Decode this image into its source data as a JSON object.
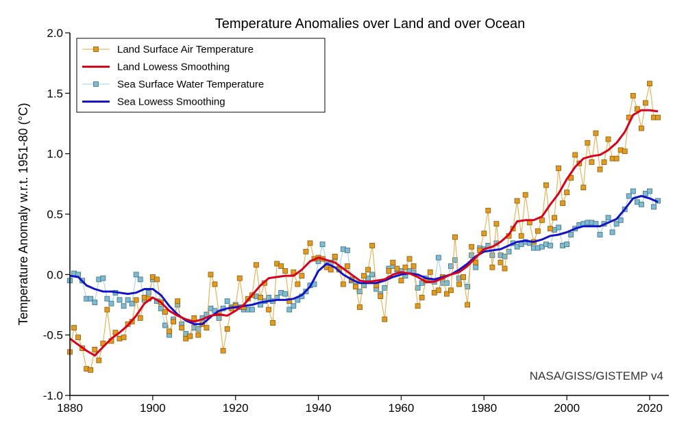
{
  "chart_data": {
    "type": "line",
    "title": "Temperature Anomalies over Land and over Ocean",
    "xlabel": "",
    "ylabel": "Temperature Anomaly w.r.t. 1951-80 (°C)",
    "xlim": [
      1880,
      2025
    ],
    "ylim": [
      -1.0,
      2.0
    ],
    "xticks": [
      1880,
      1900,
      1920,
      1940,
      1960,
      1980,
      2000,
      2020
    ],
    "xtick_labels": [
      "1880",
      "1900",
      "1920",
      "1940",
      "1960",
      "1980",
      "2000",
      "2020"
    ],
    "yticks": [
      -1.0,
      -0.5,
      0.0,
      0.5,
      1.0,
      1.5,
      2.0
    ],
    "ytick_labels": [
      "-1.0",
      "-0.5",
      "0.0",
      "0.5",
      "1.0",
      "1.5",
      "2.0"
    ],
    "annotation": "NASA/GISS/GISTEMP v4",
    "legend_position": "top-left",
    "colors": {
      "land_marker_fill": "#e39b1e",
      "land_marker_stroke": "#8a5a0c",
      "land_line": "#e8a53c",
      "land_smooth": "#d9001b",
      "sea_marker_fill": "#7fbcd2",
      "sea_marker_stroke": "#3b6d80",
      "sea_line": "#9ccfe0",
      "sea_smooth": "#1313c8"
    },
    "series": [
      {
        "name": "Land Surface Air Temperature",
        "style": "markers",
        "x": [
          1880,
          1881,
          1882,
          1883,
          1884,
          1885,
          1886,
          1887,
          1888,
          1889,
          1890,
          1891,
          1892,
          1893,
          1894,
          1895,
          1896,
          1897,
          1898,
          1899,
          1900,
          1901,
          1902,
          1903,
          1904,
          1905,
          1906,
          1907,
          1908,
          1909,
          1910,
          1911,
          1912,
          1913,
          1914,
          1915,
          1916,
          1917,
          1918,
          1919,
          1920,
          1921,
          1922,
          1923,
          1924,
          1925,
          1926,
          1927,
          1928,
          1929,
          1930,
          1931,
          1932,
          1933,
          1934,
          1935,
          1936,
          1937,
          1938,
          1939,
          1940,
          1941,
          1942,
          1943,
          1944,
          1945,
          1946,
          1947,
          1948,
          1949,
          1950,
          1951,
          1952,
          1953,
          1954,
          1955,
          1956,
          1957,
          1958,
          1959,
          1960,
          1961,
          1962,
          1963,
          1964,
          1965,
          1966,
          1967,
          1968,
          1969,
          1970,
          1971,
          1972,
          1973,
          1974,
          1975,
          1976,
          1977,
          1978,
          1979,
          1980,
          1981,
          1982,
          1983,
          1984,
          1985,
          1986,
          1987,
          1988,
          1989,
          1990,
          1991,
          1992,
          1993,
          1994,
          1995,
          1996,
          1997,
          1998,
          1999,
          2000,
          2001,
          2002,
          2003,
          2004,
          2005,
          2006,
          2007,
          2008,
          2009,
          2010,
          2011,
          2012,
          2013,
          2014,
          2015,
          2016,
          2017,
          2018,
          2019,
          2020,
          2021,
          2022
        ],
        "values": [
          -0.64,
          -0.44,
          -0.52,
          -0.61,
          -0.78,
          -0.79,
          -0.62,
          -0.71,
          -0.57,
          -0.29,
          -0.55,
          -0.48,
          -0.53,
          -0.52,
          -0.41,
          -0.39,
          -0.21,
          -0.36,
          -0.19,
          -0.2,
          -0.02,
          -0.04,
          -0.23,
          -0.31,
          -0.47,
          -0.39,
          -0.22,
          -0.44,
          -0.53,
          -0.51,
          -0.36,
          -0.5,
          -0.41,
          -0.44,
          0.0,
          -0.08,
          -0.32,
          -0.63,
          -0.45,
          -0.28,
          -0.26,
          -0.03,
          -0.27,
          -0.2,
          -0.17,
          0.08,
          -0.19,
          -0.07,
          -0.29,
          -0.4,
          0.09,
          0.07,
          0.03,
          -0.22,
          0.02,
          -0.08,
          -0.01,
          0.19,
          0.26,
          0.13,
          0.14,
          0.13,
          0.06,
          0.04,
          0.15,
          0.04,
          -0.08,
          0.07,
          -0.04,
          -0.1,
          -0.27,
          -0.01,
          0.04,
          0.24,
          -0.09,
          -0.18,
          -0.37,
          0.03,
          0.1,
          0.05,
          -0.05,
          0.06,
          0.13,
          0.07,
          -0.26,
          -0.19,
          -0.05,
          0.02,
          -0.15,
          -0.13,
          -0.02,
          -0.16,
          -0.13,
          0.31,
          -0.08,
          -0.02,
          -0.25,
          0.23,
          0.1,
          0.2,
          0.34,
          0.53,
          0.06,
          0.42,
          0.1,
          0.05,
          0.32,
          0.38,
          0.61,
          0.32,
          0.66,
          0.43,
          0.27,
          0.36,
          0.45,
          0.74,
          0.38,
          0.47,
          0.88,
          0.59,
          0.68,
          0.8,
          0.99,
          0.92,
          0.72,
          1.09,
          0.93,
          1.17,
          0.87,
          0.93,
          1.12,
          0.96,
          0.96,
          1.03,
          1.02,
          1.3,
          1.48,
          1.37,
          1.21,
          1.42,
          1.58,
          1.3,
          1.3
        ]
      },
      {
        "name": "Land Lowess Smoothing",
        "style": "line",
        "x": [
          1880,
          1882,
          1884,
          1886,
          1888,
          1890,
          1892,
          1894,
          1896,
          1898,
          1900,
          1902,
          1904,
          1906,
          1908,
          1910,
          1912,
          1914,
          1916,
          1918,
          1920,
          1922,
          1924,
          1926,
          1928,
          1930,
          1932,
          1934,
          1936,
          1938,
          1940,
          1942,
          1944,
          1946,
          1948,
          1950,
          1952,
          1954,
          1956,
          1958,
          1960,
          1962,
          1964,
          1966,
          1968,
          1970,
          1972,
          1974,
          1976,
          1978,
          1980,
          1982,
          1984,
          1986,
          1988,
          1990,
          1992,
          1994,
          1996,
          1998,
          2000,
          2002,
          2004,
          2006,
          2008,
          2010,
          2012,
          2014,
          2016,
          2018,
          2020,
          2022
        ],
        "values": [
          -0.53,
          -0.58,
          -0.63,
          -0.67,
          -0.6,
          -0.53,
          -0.48,
          -0.42,
          -0.34,
          -0.24,
          -0.19,
          -0.23,
          -0.3,
          -0.34,
          -0.37,
          -0.39,
          -0.37,
          -0.34,
          -0.33,
          -0.34,
          -0.3,
          -0.25,
          -0.17,
          -0.09,
          -0.03,
          -0.02,
          -0.01,
          -0.01,
          0.04,
          0.11,
          0.14,
          0.12,
          0.1,
          0.05,
          0.0,
          -0.05,
          -0.06,
          -0.05,
          -0.04,
          0.0,
          0.02,
          0.01,
          -0.02,
          -0.06,
          -0.06,
          -0.03,
          0.0,
          0.02,
          0.07,
          0.14,
          0.21,
          0.23,
          0.27,
          0.33,
          0.44,
          0.45,
          0.45,
          0.48,
          0.58,
          0.67,
          0.79,
          0.89,
          0.96,
          0.98,
          0.99,
          1.03,
          1.09,
          1.18,
          1.32,
          1.36,
          1.36,
          1.35
        ]
      },
      {
        "name": "Sea Surface Water Temperature",
        "style": "markers",
        "x": [
          1880,
          1881,
          1882,
          1883,
          1884,
          1885,
          1886,
          1887,
          1888,
          1889,
          1890,
          1891,
          1892,
          1893,
          1894,
          1895,
          1896,
          1897,
          1898,
          1899,
          1900,
          1901,
          1902,
          1903,
          1904,
          1905,
          1906,
          1907,
          1908,
          1909,
          1910,
          1911,
          1912,
          1913,
          1914,
          1915,
          1916,
          1917,
          1918,
          1919,
          1920,
          1921,
          1922,
          1923,
          1924,
          1925,
          1926,
          1927,
          1928,
          1929,
          1930,
          1931,
          1932,
          1933,
          1934,
          1935,
          1936,
          1937,
          1938,
          1939,
          1940,
          1941,
          1942,
          1943,
          1944,
          1945,
          1946,
          1947,
          1948,
          1949,
          1950,
          1951,
          1952,
          1953,
          1954,
          1955,
          1956,
          1957,
          1958,
          1959,
          1960,
          1961,
          1962,
          1963,
          1964,
          1965,
          1966,
          1967,
          1968,
          1969,
          1970,
          1971,
          1972,
          1973,
          1974,
          1975,
          1976,
          1977,
          1978,
          1979,
          1980,
          1981,
          1982,
          1983,
          1984,
          1985,
          1986,
          1987,
          1988,
          1989,
          1990,
          1991,
          1992,
          1993,
          1994,
          1995,
          1996,
          1997,
          1998,
          1999,
          2000,
          2001,
          2002,
          2003,
          2004,
          2005,
          2006,
          2007,
          2008,
          2009,
          2010,
          2011,
          2012,
          2013,
          2014,
          2015,
          2016,
          2017,
          2018,
          2019,
          2020,
          2021,
          2022
        ],
        "values": [
          -0.05,
          0.01,
          0.0,
          -0.05,
          -0.2,
          -0.2,
          -0.23,
          -0.04,
          -0.03,
          -0.2,
          -0.24,
          -0.15,
          -0.21,
          -0.26,
          -0.21,
          -0.24,
          0.0,
          -0.04,
          -0.21,
          -0.15,
          -0.04,
          -0.22,
          -0.28,
          -0.42,
          -0.5,
          -0.37,
          -0.25,
          -0.41,
          -0.49,
          -0.51,
          -0.44,
          -0.45,
          -0.36,
          -0.33,
          -0.28,
          -0.3,
          -0.36,
          -0.28,
          -0.22,
          -0.27,
          -0.25,
          -0.27,
          -0.29,
          -0.29,
          -0.29,
          -0.18,
          -0.25,
          -0.22,
          -0.19,
          -0.22,
          -0.19,
          -0.15,
          -0.16,
          -0.29,
          -0.26,
          -0.21,
          -0.18,
          -0.14,
          -0.09,
          -0.08,
          0.11,
          0.25,
          0.1,
          0.1,
          0.14,
          0.05,
          0.21,
          0.2,
          -0.05,
          -0.09,
          -0.14,
          -0.09,
          -0.03,
          0.0,
          -0.12,
          -0.16,
          -0.11,
          0.05,
          0.07,
          0.04,
          0.03,
          -0.01,
          0.03,
          0.02,
          -0.11,
          -0.07,
          -0.03,
          -0.05,
          -0.06,
          0.14,
          -0.07,
          -0.07,
          0.07,
          0.12,
          -0.03,
          -0.02,
          -0.1,
          0.16,
          0.06,
          0.22,
          0.21,
          0.24,
          0.16,
          0.26,
          0.16,
          0.15,
          0.19,
          0.26,
          0.23,
          0.25,
          0.27,
          0.26,
          0.22,
          0.22,
          0.23,
          0.25,
          0.24,
          0.37,
          0.39,
          0.24,
          0.25,
          0.33,
          0.38,
          0.41,
          0.42,
          0.43,
          0.43,
          0.42,
          0.33,
          0.42,
          0.47,
          0.35,
          0.42,
          0.45,
          0.54,
          0.65,
          0.69,
          0.6,
          0.58,
          0.67,
          0.69,
          0.56,
          0.61
        ]
      },
      {
        "name": "Sea Lowess Smoothing",
        "style": "line",
        "x": [
          1880,
          1882,
          1884,
          1886,
          1888,
          1890,
          1892,
          1894,
          1896,
          1898,
          1900,
          1902,
          1904,
          1906,
          1908,
          1910,
          1912,
          1914,
          1916,
          1918,
          1920,
          1922,
          1924,
          1926,
          1928,
          1930,
          1932,
          1934,
          1936,
          1938,
          1940,
          1942,
          1944,
          1946,
          1948,
          1950,
          1952,
          1954,
          1956,
          1958,
          1960,
          1962,
          1964,
          1966,
          1968,
          1970,
          1972,
          1974,
          1976,
          1978,
          1980,
          1982,
          1984,
          1986,
          1988,
          1990,
          1992,
          1994,
          1996,
          1998,
          2000,
          2002,
          2004,
          2006,
          2008,
          2010,
          2012,
          2014,
          2016,
          2018,
          2020,
          2022
        ],
        "values": [
          -0.01,
          -0.02,
          -0.09,
          -0.12,
          -0.14,
          -0.14,
          -0.15,
          -0.16,
          -0.15,
          -0.12,
          -0.12,
          -0.17,
          -0.26,
          -0.33,
          -0.38,
          -0.41,
          -0.41,
          -0.35,
          -0.3,
          -0.28,
          -0.27,
          -0.26,
          -0.25,
          -0.23,
          -0.22,
          -0.21,
          -0.21,
          -0.2,
          -0.17,
          -0.1,
          0.03,
          0.09,
          0.06,
          0.0,
          -0.04,
          -0.07,
          -0.07,
          -0.07,
          -0.05,
          -0.02,
          0.0,
          0.01,
          0.0,
          -0.03,
          -0.04,
          -0.02,
          0.0,
          0.04,
          0.09,
          0.15,
          0.19,
          0.2,
          0.21,
          0.24,
          0.27,
          0.28,
          0.27,
          0.29,
          0.32,
          0.33,
          0.35,
          0.38,
          0.4,
          0.4,
          0.4,
          0.43,
          0.46,
          0.54,
          0.63,
          0.65,
          0.63,
          0.6
        ]
      }
    ]
  }
}
